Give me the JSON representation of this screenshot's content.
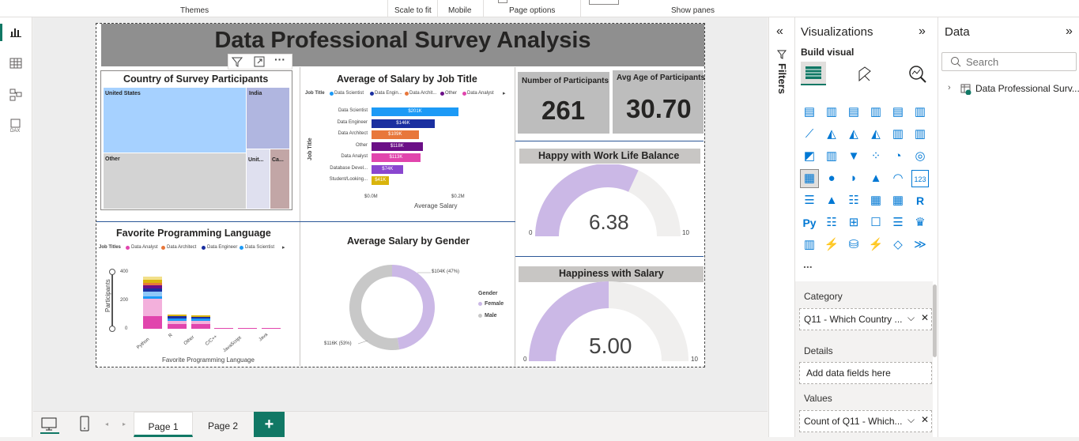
{
  "ribbon": {
    "groups": [
      "Themes",
      "Scale to fit",
      "Mobile",
      "Page options",
      "Show panes"
    ]
  },
  "report": {
    "title": "Data Professional Survey Analysis",
    "treemap": {
      "title": "Country of Survey Participants",
      "cells": [
        "United States",
        "India",
        "Other",
        "Unit...",
        "Ca..."
      ]
    },
    "salary_job": {
      "title": "Average of Salary by Job Title",
      "legend_title": "Job Title",
      "legend": [
        "Data Scientist",
        "Data Engin...",
        "Data Archit...",
        "Other",
        "Data Analyst"
      ],
      "rows": [
        {
          "label": "Data Scientist",
          "value": "$201K",
          "v": 201,
          "color": "#1c9af6"
        },
        {
          "label": "Data Engineer",
          "value": "$146K",
          "v": 146,
          "color": "#1a2fa0"
        },
        {
          "label": "Data Architect",
          "value": "$109K",
          "v": 109,
          "color": "#e8773b"
        },
        {
          "label": "Other",
          "value": "$118K",
          "v": 118,
          "color": "#6b0f87"
        },
        {
          "label": "Data Analyst",
          "value": "$113K",
          "v": 113,
          "color": "#e145ad"
        },
        {
          "label": "Database Devel...",
          "value": "$74K",
          "v": 74,
          "color": "#8a46cf"
        },
        {
          "label": "Student/Looking...",
          "value": "$41K",
          "v": 41,
          "color": "#d9b40c"
        }
      ],
      "ylabel": "Job Title",
      "xlabel": "Average Salary",
      "xticks": [
        "$0.0M",
        "$0.2M"
      ]
    },
    "participants": {
      "label": "Number of Participants",
      "value": "261"
    },
    "avg_age": {
      "label": "Avg Age of Participants",
      "value": "30.70"
    },
    "work_life": {
      "title": "Happy with Work Life Balance",
      "value": "6.38",
      "min": "0",
      "max": "10",
      "v": 6.38
    },
    "happy_salary": {
      "title": "Happiness with Salary",
      "value": "5.00",
      "min": "0",
      "max": "10",
      "v": 5.0
    },
    "prog_lang": {
      "title": "Favorite Programming Language",
      "legend_title": "Job Titles",
      "legend": [
        "Data Analyst",
        "Data Architect",
        "Data Engineer",
        "Data Scientist"
      ],
      "ylabel": "Participants",
      "xlabel": "Favorite Programming Language",
      "yticks": [
        "400",
        "200",
        "0"
      ],
      "categories": [
        "Python",
        "R",
        "Other",
        "C/C++",
        "JavaScript",
        "Java"
      ]
    },
    "salary_gender": {
      "title": "Average Salary by Gender",
      "female_label": "$104K (47%)",
      "male_label": "$116K (53%)",
      "legend_title": "Gender",
      "legend": [
        "Female",
        "Male"
      ]
    }
  },
  "filters": {
    "label": "Filters"
  },
  "viz": {
    "title": "Visualizations",
    "build": "Build visual",
    "more": "...",
    "wells": [
      {
        "label": "Category",
        "value": "Q11 - Which Country ..."
      },
      {
        "label": "Details",
        "placeholder": "Add data fields here"
      },
      {
        "label": "Values",
        "value": "Count of Q11 - Which..."
      }
    ]
  },
  "data": {
    "title": "Data",
    "search_placeholder": "Search",
    "table": "Data Professional Surv..."
  },
  "pages": [
    "Page 1",
    "Page 2"
  ],
  "chart_data": [
    {
      "type": "bar",
      "title": "Average of Salary by Job Title",
      "categories": [
        "Data Scientist",
        "Data Engineer",
        "Data Architect",
        "Other",
        "Data Analyst",
        "Database Devel...",
        "Student/Looking..."
      ],
      "values": [
        201,
        146,
        109,
        118,
        113,
        74,
        41
      ],
      "xlabel": "Average Salary",
      "ylabel": "Job Title"
    },
    {
      "type": "pie",
      "title": "Average Salary by Gender",
      "categories": [
        "Female",
        "Male"
      ],
      "values": [
        104,
        116
      ]
    }
  ]
}
